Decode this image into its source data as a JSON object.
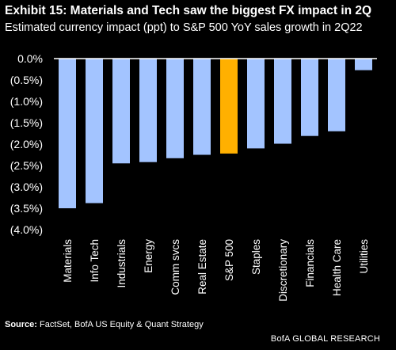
{
  "header": {
    "title": "Exhibit 15: Materials and Tech saw the biggest FX impact in 2Q",
    "subtitle": "Estimated currency impact (ppt) to S&P 500 YoY sales growth in 2Q22"
  },
  "footer": {
    "source_label": "Source:",
    "source_text": "FactSet, BofA US Equity & Quant Strategy",
    "brand": "BofA GLOBAL RESEARCH"
  },
  "colors": {
    "bar": "#a3c4ff",
    "highlight": "#ffb000",
    "axis": "#ffffff",
    "background": "#000000"
  },
  "chart_data": {
    "type": "bar",
    "categories": [
      "Materials",
      "Info Tech",
      "Industrials",
      "Energy",
      "Comm svcs",
      "Real Estate",
      "S&P 500",
      "Staples",
      "Discretionary",
      "Financials",
      "Health Care",
      "Utilities"
    ],
    "values": [
      -3.5,
      -3.38,
      -2.45,
      -2.42,
      -2.33,
      -2.25,
      -2.22,
      -2.1,
      -1.99,
      -1.81,
      -1.7,
      -0.27
    ],
    "highlight_category": "S&P 500",
    "ylim": [
      -4.0,
      0.0
    ],
    "yticks": [
      0.0,
      -0.5,
      -1.0,
      -1.5,
      -2.0,
      -2.5,
      -3.0,
      -3.5,
      -4.0
    ],
    "ytick_labels": [
      "0.0%",
      "(0.5%)",
      "(1.0%)",
      "(1.5%)",
      "(2.0%)",
      "(2.5%)",
      "(3.0%)",
      "(3.5%)",
      "(4.0%)"
    ],
    "grid": false,
    "legend": "none"
  }
}
